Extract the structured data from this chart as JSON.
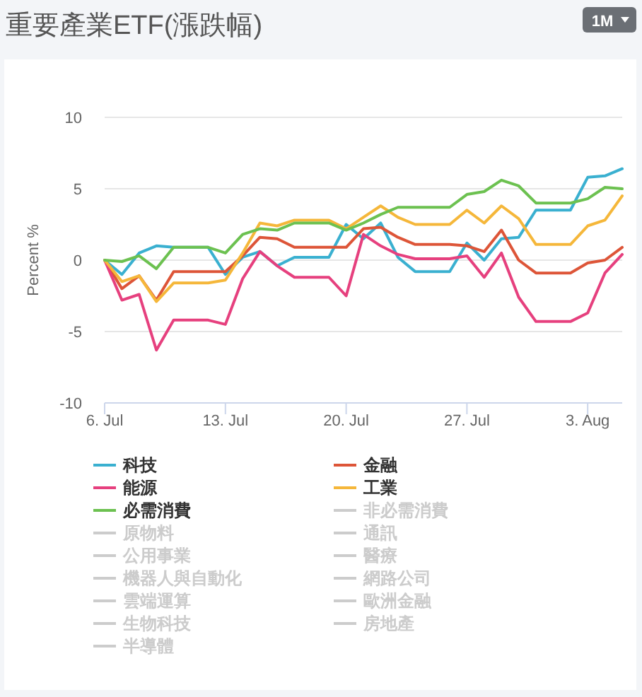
{
  "chart_data": {
    "type": "line",
    "title": "重要產業ETF(漲跌幅)",
    "ylabel": "Percent %",
    "annotations": [
      "1M"
    ],
    "x": [
      "--07-06",
      "--07-07",
      "--07-08",
      "--07-09",
      "--07-10",
      "--07-11",
      "--07-12",
      "--07-13",
      "--07-14",
      "--07-15",
      "--07-16",
      "--07-17",
      "--07-18",
      "--07-19",
      "--07-20",
      "--07-21",
      "--07-22",
      "--07-23",
      "--07-24",
      "--07-25",
      "--07-26",
      "--07-27",
      "--07-28",
      "--07-29",
      "--07-30",
      "--07-31",
      "--08-01",
      "--08-02",
      "--08-03",
      "--08-04",
      "--08-05"
    ],
    "xlim": [
      "--07-06",
      "--08-05"
    ],
    "xticks": [
      {
        "value": "--07-06",
        "label": "6. Jul"
      },
      {
        "value": "--07-13",
        "label": "13. Jul"
      },
      {
        "value": "--07-20",
        "label": "20. Jul"
      },
      {
        "value": "--07-27",
        "label": "27. Jul"
      },
      {
        "value": "--08-03",
        "label": "3. Aug"
      }
    ],
    "ylim": [
      -10,
      10
    ],
    "yticks": [
      -10,
      -5,
      0,
      5,
      10
    ],
    "grid": "y",
    "legend": "bottom",
    "marker": "none",
    "line_style": "solid",
    "series": [
      {
        "name": "科技",
        "color": "#3ab0d0",
        "values": [
          0,
          -1,
          0.5,
          1,
          0.9,
          0.9,
          0.9,
          -1,
          0.2,
          0.6,
          -0.4,
          0.2,
          0.2,
          0.2,
          2.5,
          1.5,
          2.6,
          0.2,
          -0.8,
          -0.8,
          -0.8,
          1.2,
          0,
          1.5,
          1.6,
          3.5,
          3.5,
          3.5,
          5.8,
          5.9,
          6.4
        ]
      },
      {
        "name": "金融",
        "color": "#dd5538",
        "values": [
          0,
          -2,
          -1.1,
          -2.8,
          -0.8,
          -0.8,
          -0.8,
          -0.8,
          0.3,
          1.6,
          1.5,
          0.9,
          0.9,
          0.9,
          0.9,
          2.2,
          2.3,
          1.6,
          1.1,
          1.1,
          1.1,
          1,
          0.6,
          2.1,
          0,
          -0.9,
          -0.9,
          -0.9,
          -0.2,
          0,
          0.9
        ]
      },
      {
        "name": "能源",
        "color": "#e6407e",
        "values": [
          0,
          -2.8,
          -2.4,
          -6.3,
          -4.2,
          -4.2,
          -4.2,
          -4.5,
          -1.3,
          0.6,
          -0.4,
          -1.2,
          -1.2,
          -1.2,
          -2.5,
          1.8,
          1,
          0.4,
          0.1,
          0.1,
          0.1,
          0.3,
          -1.2,
          0.5,
          -2.6,
          -4.3,
          -4.3,
          -4.3,
          -3.7,
          -0.9,
          0.4
        ]
      },
      {
        "name": "工業",
        "color": "#f5b73a",
        "values": [
          0,
          -1.5,
          -1.1,
          -2.9,
          -1.6,
          -1.6,
          -1.6,
          -1.4,
          0.5,
          2.6,
          2.4,
          2.8,
          2.8,
          2.8,
          2.2,
          3,
          3.8,
          3,
          2.5,
          2.5,
          2.5,
          3.5,
          2.6,
          3.8,
          2.9,
          1.1,
          1.1,
          1.1,
          2.4,
          2.8,
          4.5
        ]
      },
      {
        "name": "必需消費",
        "color": "#6cc150",
        "values": [
          0,
          -0.1,
          0.3,
          -0.6,
          0.9,
          0.9,
          0.9,
          0.5,
          1.8,
          2.2,
          2.1,
          2.6,
          2.6,
          2.6,
          2.1,
          2.6,
          3.2,
          3.7,
          3.7,
          3.7,
          3.7,
          4.6,
          4.8,
          5.6,
          5.2,
          4,
          4,
          4,
          4.3,
          5.1,
          5
        ]
      },
      {
        "name": "非必需消費",
        "color": "#cccccc",
        "values": [
          null,
          null,
          null,
          null,
          null,
          null,
          null,
          null,
          null,
          null,
          null,
          null,
          null,
          null,
          null,
          null,
          null,
          null,
          null,
          null,
          null,
          null,
          null,
          null,
          null,
          null,
          null,
          null,
          null,
          null,
          null
        ]
      },
      {
        "name": "原物料",
        "color": "#cccccc",
        "values": [
          null,
          null,
          null,
          null,
          null,
          null,
          null,
          null,
          null,
          null,
          null,
          null,
          null,
          null,
          null,
          null,
          null,
          null,
          null,
          null,
          null,
          null,
          null,
          null,
          null,
          null,
          null,
          null,
          null,
          null,
          null
        ]
      },
      {
        "name": "通訊",
        "color": "#cccccc",
        "values": [
          null,
          null,
          null,
          null,
          null,
          null,
          null,
          null,
          null,
          null,
          null,
          null,
          null,
          null,
          null,
          null,
          null,
          null,
          null,
          null,
          null,
          null,
          null,
          null,
          null,
          null,
          null,
          null,
          null,
          null,
          null
        ]
      },
      {
        "name": "公用事業",
        "color": "#cccccc",
        "values": [
          null,
          null,
          null,
          null,
          null,
          null,
          null,
          null,
          null,
          null,
          null,
          null,
          null,
          null,
          null,
          null,
          null,
          null,
          null,
          null,
          null,
          null,
          null,
          null,
          null,
          null,
          null,
          null,
          null,
          null,
          null
        ]
      },
      {
        "name": "醫療",
        "color": "#cccccc",
        "values": [
          null,
          null,
          null,
          null,
          null,
          null,
          null,
          null,
          null,
          null,
          null,
          null,
          null,
          null,
          null,
          null,
          null,
          null,
          null,
          null,
          null,
          null,
          null,
          null,
          null,
          null,
          null,
          null,
          null,
          null,
          null
        ]
      },
      {
        "name": "機器人與自動化",
        "color": "#cccccc",
        "values": [
          null,
          null,
          null,
          null,
          null,
          null,
          null,
          null,
          null,
          null,
          null,
          null,
          null,
          null,
          null,
          null,
          null,
          null,
          null,
          null,
          null,
          null,
          null,
          null,
          null,
          null,
          null,
          null,
          null,
          null,
          null
        ]
      },
      {
        "name": "網路公司",
        "color": "#cccccc",
        "values": [
          null,
          null,
          null,
          null,
          null,
          null,
          null,
          null,
          null,
          null,
          null,
          null,
          null,
          null,
          null,
          null,
          null,
          null,
          null,
          null,
          null,
          null,
          null,
          null,
          null,
          null,
          null,
          null,
          null,
          null,
          null
        ]
      },
      {
        "name": "雲端運算",
        "color": "#cccccc",
        "values": [
          null,
          null,
          null,
          null,
          null,
          null,
          null,
          null,
          null,
          null,
          null,
          null,
          null,
          null,
          null,
          null,
          null,
          null,
          null,
          null,
          null,
          null,
          null,
          null,
          null,
          null,
          null,
          null,
          null,
          null,
          null
        ]
      },
      {
        "name": "歐洲金融",
        "color": "#cccccc",
        "values": [
          null,
          null,
          null,
          null,
          null,
          null,
          null,
          null,
          null,
          null,
          null,
          null,
          null,
          null,
          null,
          null,
          null,
          null,
          null,
          null,
          null,
          null,
          null,
          null,
          null,
          null,
          null,
          null,
          null,
          null,
          null
        ]
      },
      {
        "name": "生物科技",
        "color": "#cccccc",
        "values": [
          null,
          null,
          null,
          null,
          null,
          null,
          null,
          null,
          null,
          null,
          null,
          null,
          null,
          null,
          null,
          null,
          null,
          null,
          null,
          null,
          null,
          null,
          null,
          null,
          null,
          null,
          null,
          null,
          null,
          null,
          null
        ]
      },
      {
        "name": "房地產",
        "color": "#cccccc",
        "values": [
          null,
          null,
          null,
          null,
          null,
          null,
          null,
          null,
          null,
          null,
          null,
          null,
          null,
          null,
          null,
          null,
          null,
          null,
          null,
          null,
          null,
          null,
          null,
          null,
          null,
          null,
          null,
          null,
          null,
          null,
          null
        ]
      },
      {
        "name": "半導體",
        "color": "#cccccc",
        "values": [
          null,
          null,
          null,
          null,
          null,
          null,
          null,
          null,
          null,
          null,
          null,
          null,
          null,
          null,
          null,
          null,
          null,
          null,
          null,
          null,
          null,
          null,
          null,
          null,
          null,
          null,
          null,
          null,
          null,
          null,
          null
        ]
      }
    ]
  }
}
